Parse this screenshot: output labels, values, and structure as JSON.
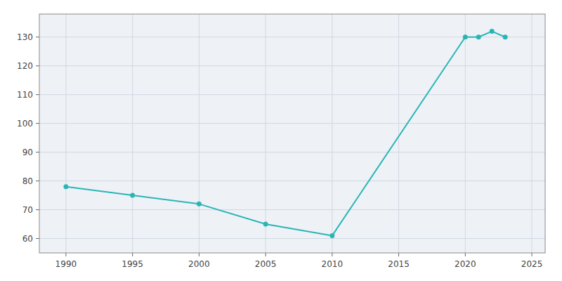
{
  "chart_data": {
    "type": "line",
    "x": [
      1990,
      1995,
      2000,
      2005,
      2010,
      2020,
      2021,
      2022,
      2023
    ],
    "values": [
      78,
      75,
      72,
      65,
      61,
      130,
      130,
      132,
      130
    ],
    "color": "#2ab5b5",
    "marker": "circle",
    "xlim": [
      1988,
      2026
    ],
    "ylim": [
      55,
      138
    ],
    "xticks": [
      1990,
      1995,
      2000,
      2005,
      2010,
      2015,
      2020,
      2025
    ],
    "yticks": [
      60,
      70,
      80,
      90,
      100,
      110,
      120,
      130
    ],
    "grid": true
  }
}
